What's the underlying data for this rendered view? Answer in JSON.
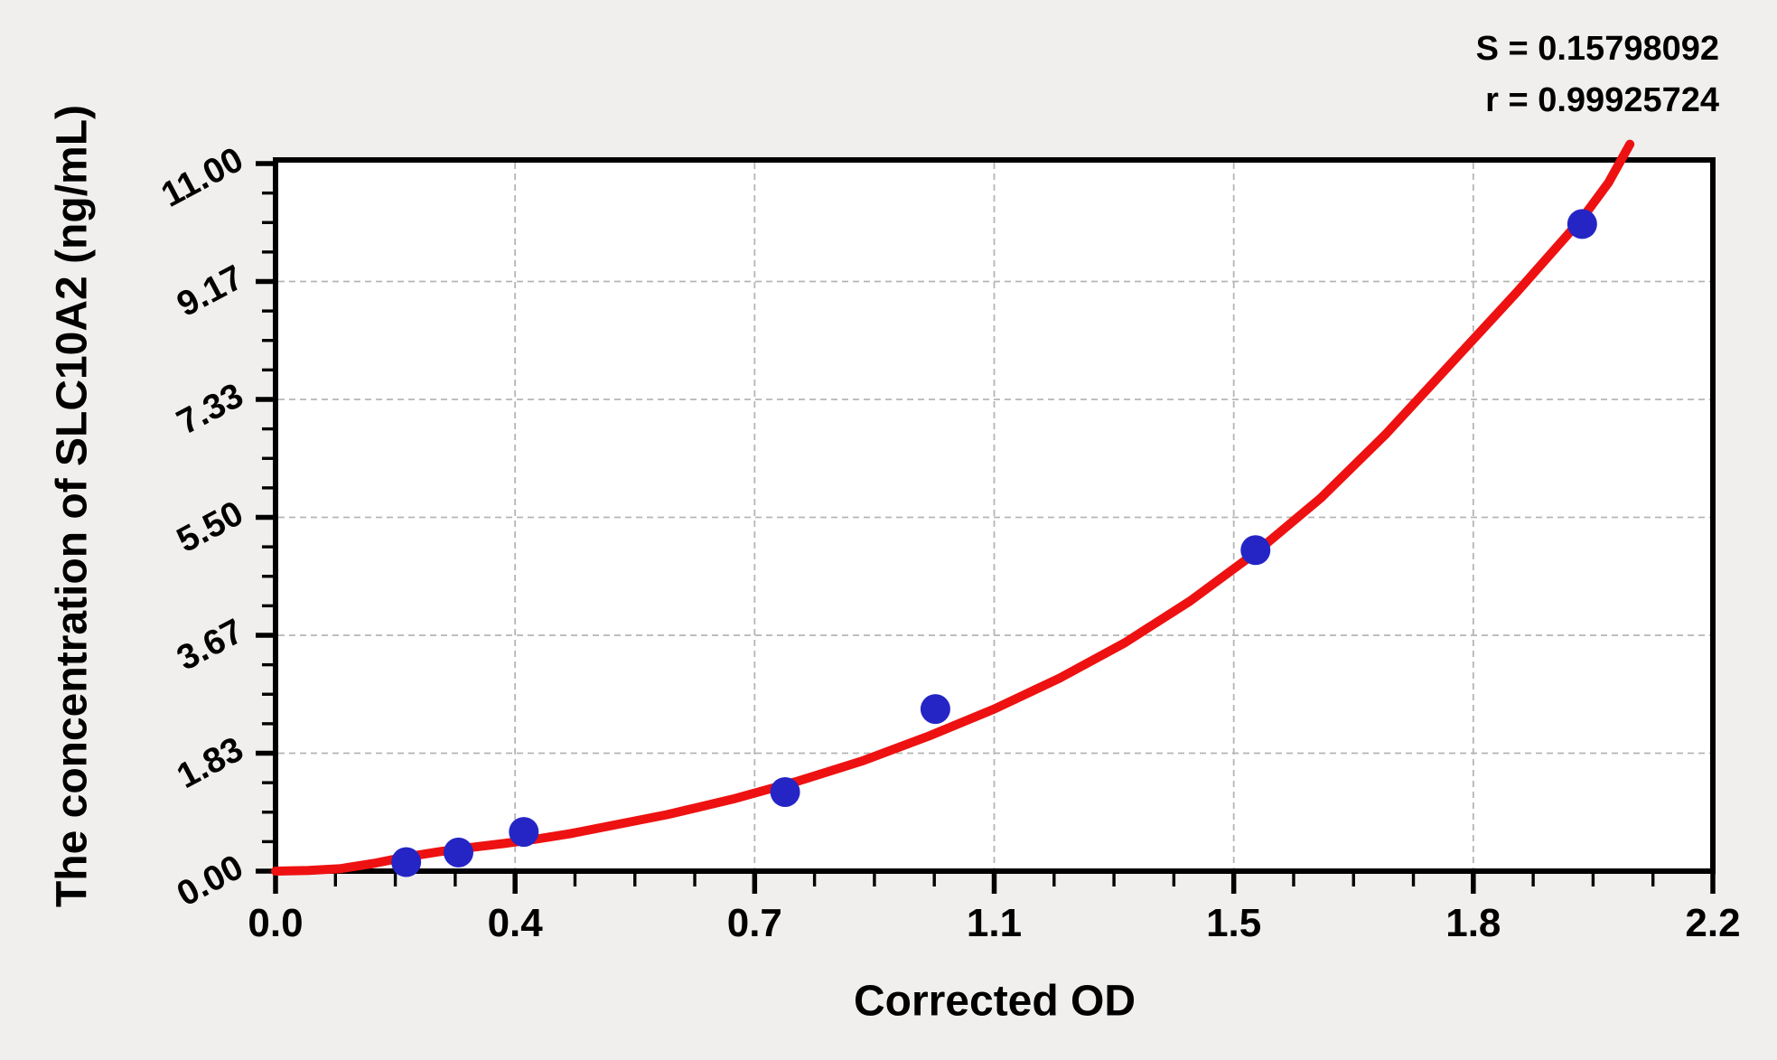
{
  "chart_data": {
    "type": "scatter",
    "title": "",
    "xlabel": "Corrected OD",
    "ylabel": "The concentration of SLC10A2 (ng/mL)",
    "xlim": [
      0,
      2.2
    ],
    "ylim": [
      0,
      11
    ],
    "x_ticks": [
      {
        "value": 0,
        "label": "0.0"
      },
      {
        "value": 0.36667,
        "label": "0.4"
      },
      {
        "value": 0.73333,
        "label": "0.7"
      },
      {
        "value": 1.1,
        "label": "1.1"
      },
      {
        "value": 1.46667,
        "label": "1.5"
      },
      {
        "value": 1.83333,
        "label": "1.8"
      },
      {
        "value": 2.2,
        "label": "2.2"
      }
    ],
    "y_ticks": [
      {
        "value": 0,
        "label": "0.00"
      },
      {
        "value": 1.83333,
        "label": "1.83"
      },
      {
        "value": 3.66667,
        "label": "3.67"
      },
      {
        "value": 5.5,
        "label": "5.50"
      },
      {
        "value": 7.33333,
        "label": "7.33"
      },
      {
        "value": 9.16667,
        "label": "9.17"
      },
      {
        "value": 11,
        "label": "11.00"
      }
    ],
    "minor_ticks_per_interval": 3,
    "grid": {
      "style": "dashed",
      "at": "major-ticks",
      "color": "#b5b5b5"
    },
    "legend": "none",
    "series": [
      {
        "name": "standard-points",
        "type": "scatter",
        "color": "#2525c6",
        "x": [
          0.2,
          0.28,
          0.38,
          0.78,
          1.01,
          1.5,
          2.0
        ],
        "y": [
          0.14,
          0.29,
          0.61,
          1.23,
          2.52,
          4.99,
          10.06
        ]
      }
    ],
    "fit_curve": {
      "name": "regression-curve",
      "color": "#ee1111",
      "points": [
        [
          0.0,
          0.0
        ],
        [
          0.05,
          0.01
        ],
        [
          0.1,
          0.04
        ],
        [
          0.15,
          0.12
        ],
        [
          0.2,
          0.22
        ],
        [
          0.25,
          0.3
        ],
        [
          0.3,
          0.37
        ],
        [
          0.35,
          0.43
        ],
        [
          0.4,
          0.5
        ],
        [
          0.45,
          0.58
        ],
        [
          0.5,
          0.68
        ],
        [
          0.6,
          0.88
        ],
        [
          0.7,
          1.12
        ],
        [
          0.8,
          1.4
        ],
        [
          0.9,
          1.72
        ],
        [
          1.0,
          2.1
        ],
        [
          1.1,
          2.52
        ],
        [
          1.2,
          3.0
        ],
        [
          1.3,
          3.55
        ],
        [
          1.4,
          4.2
        ],
        [
          1.5,
          4.95
        ],
        [
          1.6,
          5.8
        ],
        [
          1.7,
          6.8
        ],
        [
          1.8,
          7.9
        ],
        [
          1.9,
          9.0
        ],
        [
          2.0,
          10.15
        ],
        [
          2.04,
          10.7
        ],
        [
          2.073,
          11.3
        ]
      ]
    },
    "annotations": [
      {
        "name": "s-statistic",
        "text": "S = 0.15798092"
      },
      {
        "name": "r-statistic",
        "text": "r = 0.99925724"
      }
    ],
    "colors": {
      "page_background": "#f0efed",
      "plot_background": "#ffffff",
      "axis": "#000000",
      "grid": "#b5b5b5",
      "curve": "#ee1111",
      "point": "#2525c6",
      "text": "#000000"
    }
  }
}
